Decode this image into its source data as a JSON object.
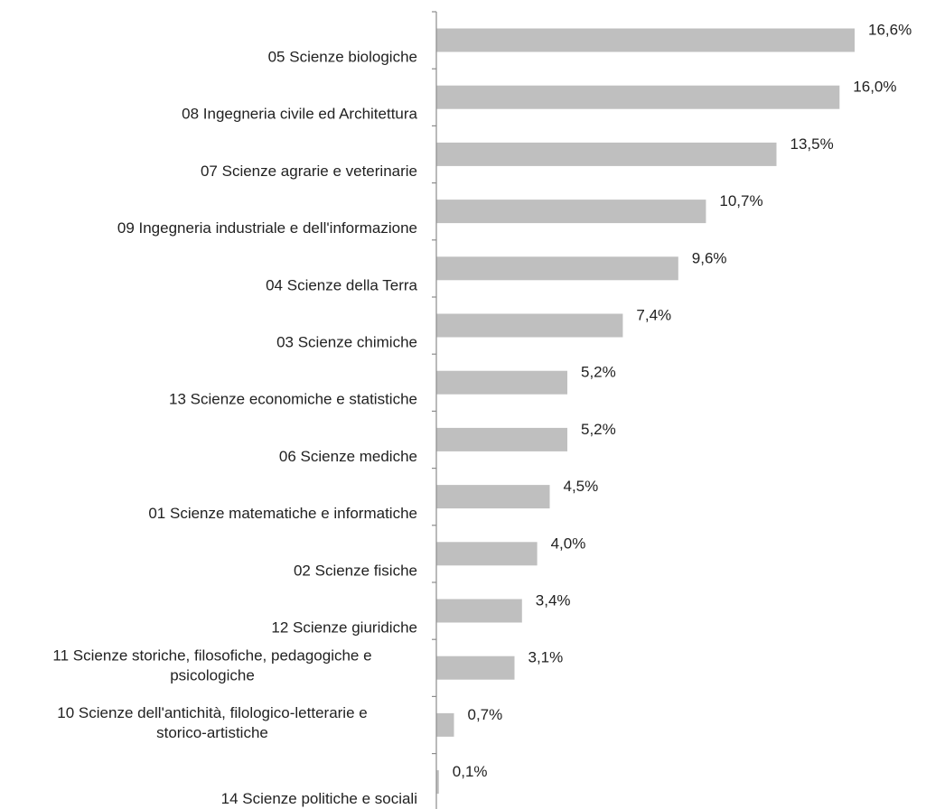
{
  "chart_data": {
    "type": "bar",
    "orientation": "horizontal",
    "categories": [
      "05 Scienze biologiche",
      "08 Ingegneria civile ed Architettura",
      "07 Scienze agrarie e veterinarie",
      "09 Ingegneria industriale e dell'informazione",
      "04 Scienze della Terra",
      "03 Scienze chimiche",
      "13 Scienze economiche e statistiche",
      "06 Scienze mediche",
      "01 Scienze matematiche e informatiche",
      "02 Scienze fisiche",
      "12 Scienze giuridiche",
      "11 Scienze storiche, filosofiche, pedagogiche e psicologiche",
      "10 Scienze dell'antichità, filologico-letterarie e storico-artistiche",
      "14 Scienze politiche e sociali"
    ],
    "category_lines": [
      [
        "05 Scienze biologiche"
      ],
      [
        "08 Ingegneria civile ed Architettura"
      ],
      [
        "07 Scienze agrarie e veterinarie"
      ],
      [
        "09 Ingegneria industriale e dell'informazione"
      ],
      [
        "04 Scienze della Terra"
      ],
      [
        "03 Scienze chimiche"
      ],
      [
        "13 Scienze economiche e statistiche"
      ],
      [
        "06 Scienze mediche"
      ],
      [
        "01 Scienze matematiche e informatiche"
      ],
      [
        "02 Scienze fisiche"
      ],
      [
        "12 Scienze giuridiche"
      ],
      [
        "11 Scienze storiche, filosofiche, pedagogiche e",
        "psicologiche"
      ],
      [
        "10 Scienze dell'antichità, filologico-letterarie e",
        "storico-artistiche"
      ],
      [
        "14 Scienze politiche e sociali"
      ]
    ],
    "values": [
      16.6,
      16.0,
      13.5,
      10.7,
      9.6,
      7.4,
      5.2,
      5.2,
      4.5,
      4.0,
      3.4,
      3.1,
      0.7,
      0.1
    ],
    "value_labels": [
      "16,6%",
      "16,0%",
      "13,5%",
      "10,7%",
      "9,6%",
      "7,4%",
      "5,2%",
      "5,2%",
      "4,5%",
      "4,0%",
      "3,4%",
      "3,1%",
      "0,7%",
      "0,1%"
    ],
    "unit": "%",
    "xlim": [
      0,
      16.6
    ],
    "bar_color": "#bfbfbf",
    "axis_color": "#8c8c8c",
    "title": "",
    "xlabel": "",
    "ylabel": "",
    "grid": false,
    "legend": "none"
  }
}
